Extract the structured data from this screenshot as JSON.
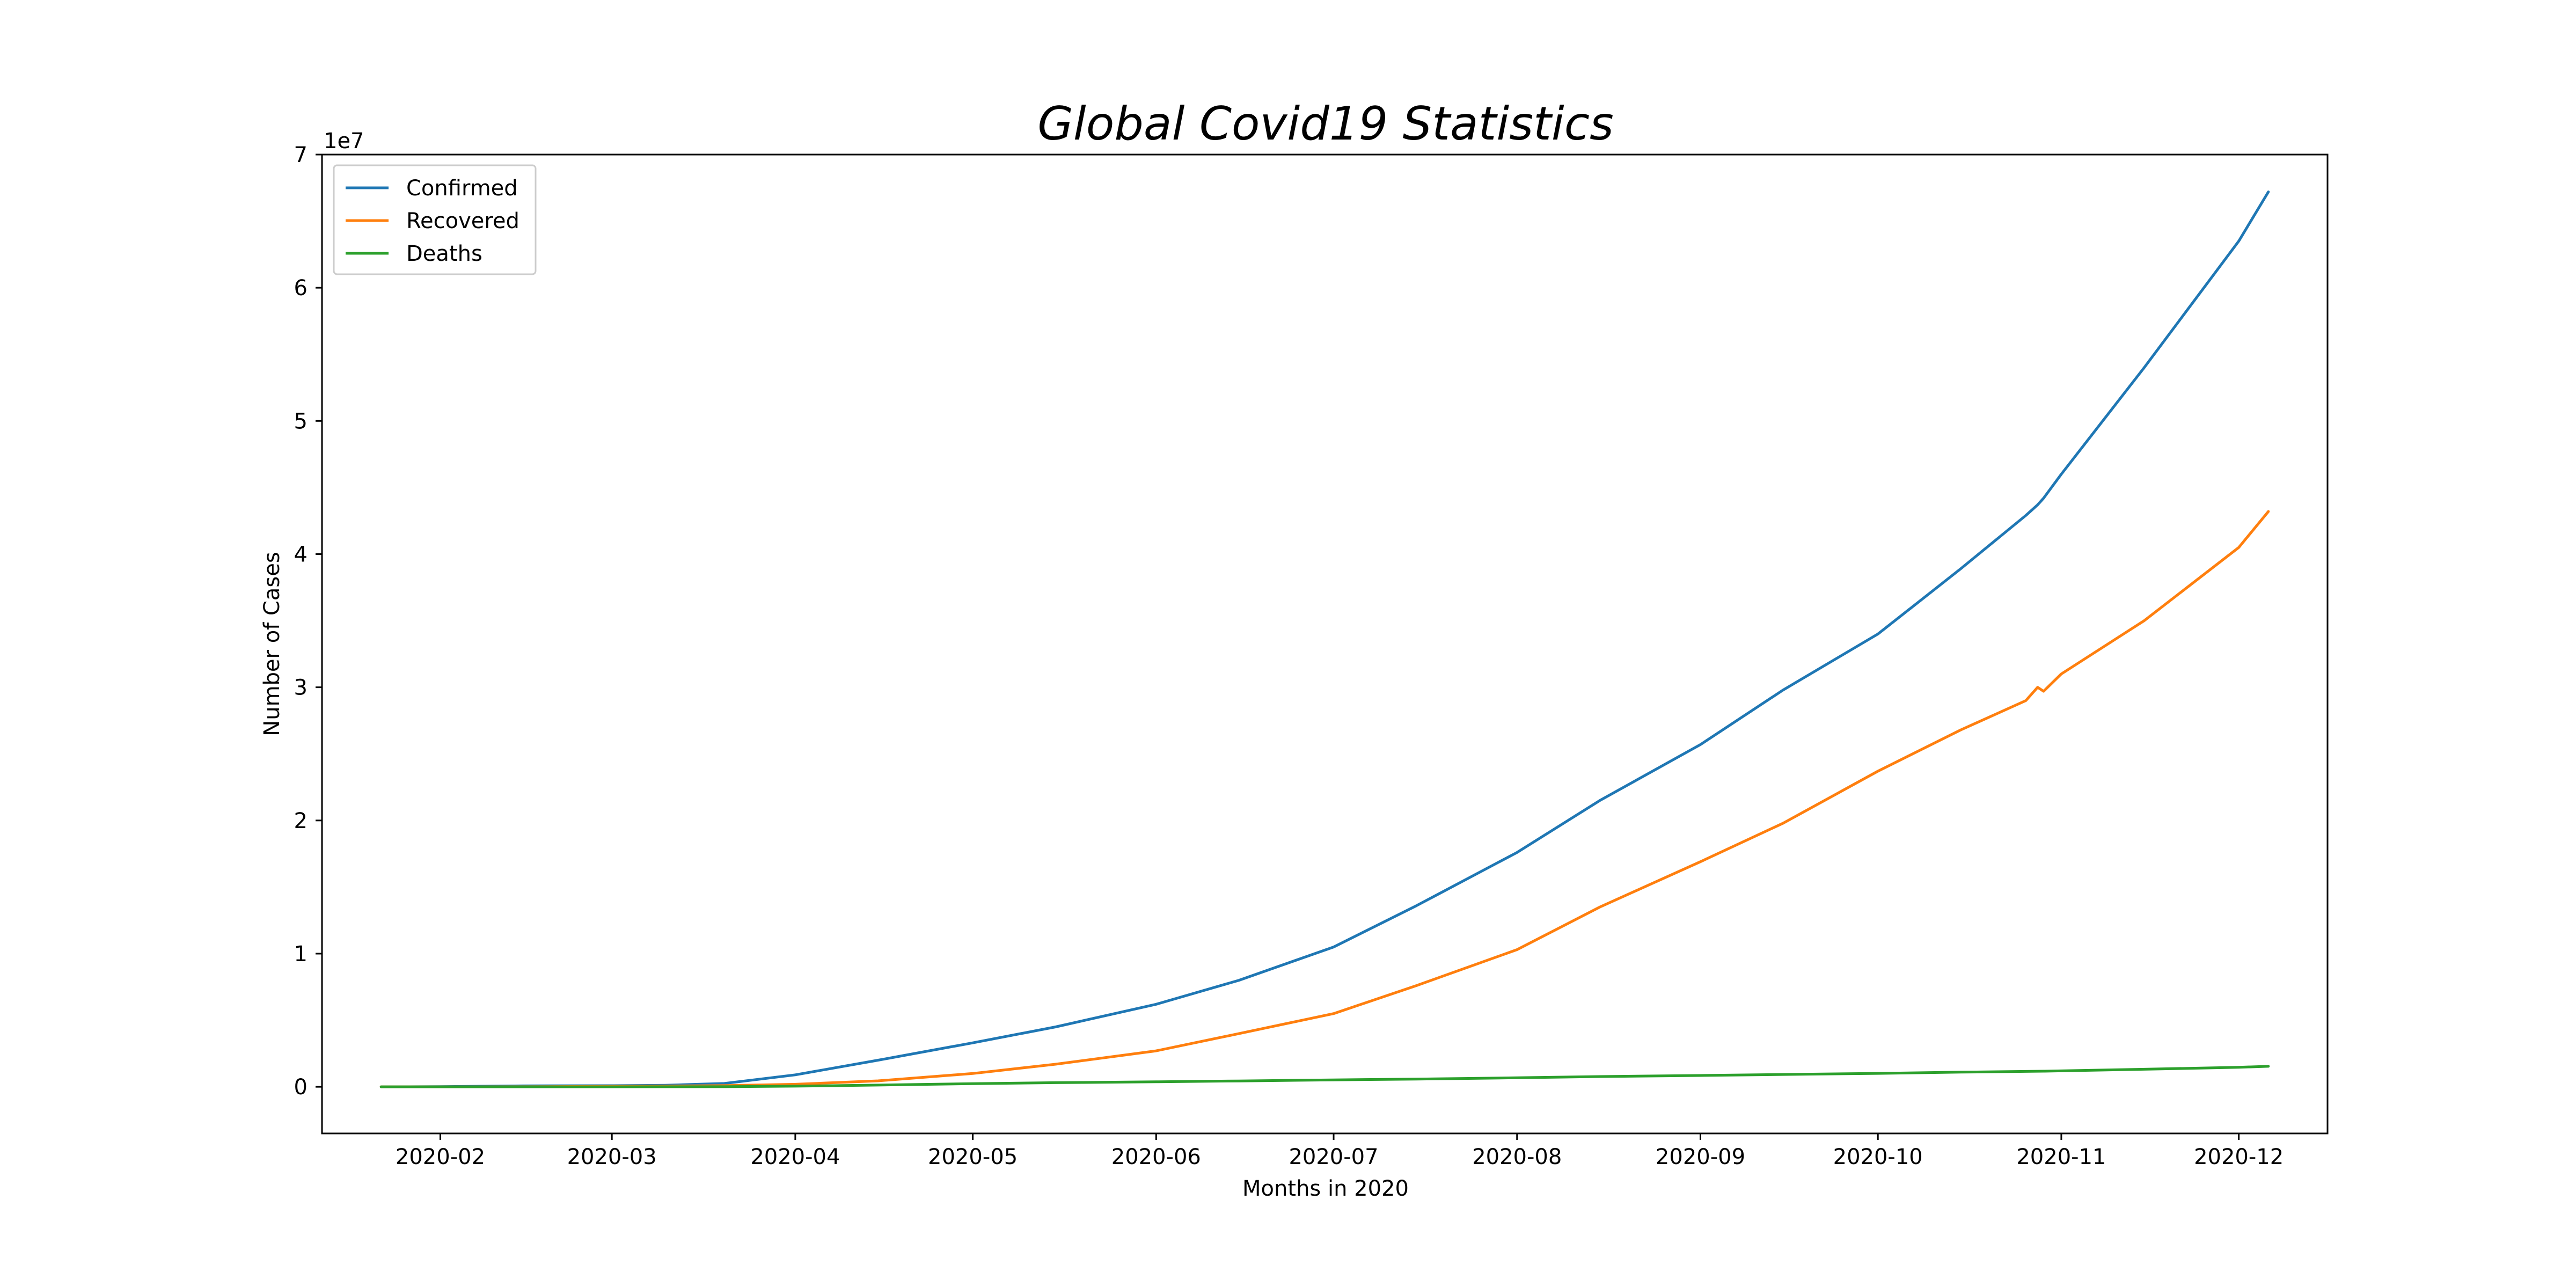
{
  "chart_data": {
    "type": "line",
    "title": "Global Covid19 Statistics",
    "xlabel": "Months in 2020",
    "ylabel": "Number of Cases",
    "y_offset_label": "1e7",
    "xlim": [
      "2020-01-12",
      "2020-12-16"
    ],
    "ylim": [
      -3500000,
      70000000
    ],
    "x_ticks": [
      {
        "value": "2020-02-01",
        "label": "2020-02"
      },
      {
        "value": "2020-03-01",
        "label": "2020-03"
      },
      {
        "value": "2020-04-01",
        "label": "2020-04"
      },
      {
        "value": "2020-05-01",
        "label": "2020-05"
      },
      {
        "value": "2020-06-01",
        "label": "2020-06"
      },
      {
        "value": "2020-07-01",
        "label": "2020-07"
      },
      {
        "value": "2020-08-01",
        "label": "2020-08"
      },
      {
        "value": "2020-09-01",
        "label": "2020-09"
      },
      {
        "value": "2020-10-01",
        "label": "2020-10"
      },
      {
        "value": "2020-11-01",
        "label": "2020-11"
      },
      {
        "value": "2020-12-01",
        "label": "2020-12"
      }
    ],
    "y_ticks": [
      {
        "value": 0,
        "label": "0"
      },
      {
        "value": 10000000,
        "label": "1"
      },
      {
        "value": 20000000,
        "label": "2"
      },
      {
        "value": 30000000,
        "label": "3"
      },
      {
        "value": 40000000,
        "label": "4"
      },
      {
        "value": 50000000,
        "label": "5"
      },
      {
        "value": 60000000,
        "label": "6"
      },
      {
        "value": 70000000,
        "label": "7"
      }
    ],
    "grid": false,
    "legend_position": "top-left",
    "x": [
      "2020-01-22",
      "2020-02-01",
      "2020-02-15",
      "2020-03-01",
      "2020-03-10",
      "2020-03-20",
      "2020-04-01",
      "2020-04-15",
      "2020-05-01",
      "2020-05-15",
      "2020-06-01",
      "2020-06-15",
      "2020-07-01",
      "2020-07-15",
      "2020-08-01",
      "2020-08-15",
      "2020-09-01",
      "2020-09-15",
      "2020-10-01",
      "2020-10-15",
      "2020-10-26",
      "2020-10-27",
      "2020-10-28",
      "2020-10-29",
      "2020-11-01",
      "2020-11-15",
      "2020-12-01",
      "2020-12-06"
    ],
    "series": [
      {
        "name": "Confirmed",
        "color": "#1f77b4",
        "values": [
          550,
          12000,
          69000,
          88000,
          118000,
          250000,
          900000,
          2000000,
          3300000,
          4500000,
          6200000,
          8000000,
          10500000,
          13600000,
          17600000,
          21500000,
          25700000,
          29800000,
          34000000,
          38900000,
          42900000,
          43300000,
          43700000,
          44200000,
          46000000,
          54000000,
          63500000,
          67200000
        ]
      },
      {
        "name": "Recovered",
        "color": "#ff7f0e",
        "values": [
          30,
          300,
          10000,
          42000,
          60000,
          90000,
          190000,
          450000,
          1000000,
          1700000,
          2700000,
          4000000,
          5500000,
          7600000,
          10300000,
          13500000,
          16900000,
          19800000,
          23700000,
          26800000,
          29000000,
          29500000,
          30000000,
          29700000,
          31000000,
          35000000,
          40500000,
          43200000
        ]
      },
      {
        "name": "Deaths",
        "color": "#2ca02c",
        "values": [
          17,
          260,
          1600,
          3000,
          4300,
          11000,
          50000,
          130000,
          240000,
          310000,
          375000,
          440000,
          520000,
          580000,
          680000,
          770000,
          850000,
          930000,
          1010000,
          1100000,
          1160000,
          1165000,
          1170000,
          1175000,
          1200000,
          1320000,
          1470000,
          1540000
        ]
      }
    ]
  }
}
